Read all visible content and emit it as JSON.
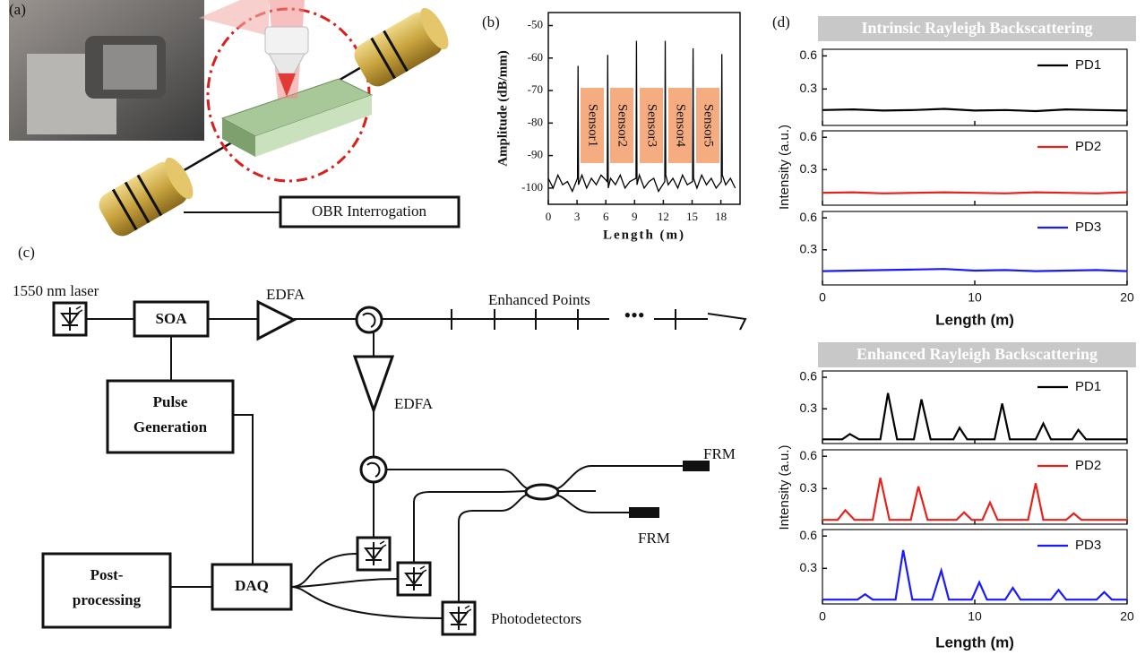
{
  "figure": {
    "panel_labels": [
      "(a)",
      "(b)",
      "(c)",
      "(d)"
    ]
  },
  "diagram_a": {
    "box": "OBR Interrogation"
  },
  "diagram_c": {
    "laser": "1550 nm laser",
    "soa": "SOA",
    "edfa_1": "EDFA",
    "enhanced_points": "Enhanced Points",
    "edfa_2": "EDFA",
    "pulse_generation": [
      "Pulse",
      "Generation"
    ],
    "frm_1": "FRM",
    "frm_2": "FRM",
    "post_processing": [
      "Post-",
      "processing"
    ],
    "daq": "DAQ",
    "photodetectors": "Photodetectors"
  },
  "chart_data": [
    {
      "type": "line",
      "xlabel": "Length (m)",
      "ylabel": "Amplitude (dB/mm)",
      "annotations": [
        "Sensor1",
        "Sensor2",
        "Sensor3",
        "Sensor4",
        "Sensor5"
      ],
      "annotation_color": "#f4ac80",
      "x": [
        0,
        0.5,
        1,
        1.5,
        2,
        2.5,
        3.05,
        3.1,
        3.15,
        3.5,
        4,
        4.5,
        5,
        5.5,
        6.15,
        6.2,
        6.25,
        6.5,
        7,
        7.5,
        8,
        8.5,
        9.15,
        9.2,
        9.25,
        9.5,
        10,
        10.5,
        11,
        11.5,
        12.15,
        12.2,
        12.25,
        12.5,
        13,
        13.5,
        14,
        14.5,
        15.05,
        15.1,
        15.15,
        15.5,
        16,
        16.5,
        17,
        17.5,
        18.05,
        18.1,
        18.15,
        18.5,
        19,
        19.5
      ],
      "values": [
        -97,
        -100,
        -96,
        -99,
        -98,
        -101,
        -97,
        -62.4,
        -99,
        -96,
        -100,
        -97,
        -99,
        -96,
        -98,
        -59,
        -100,
        -97,
        -99,
        -96,
        -100,
        -98,
        -97,
        -54.7,
        -99,
        -96,
        -100,
        -98,
        -97,
        -101,
        -98,
        -54.7,
        -96,
        -99,
        -97,
        -100,
        -96,
        -99,
        -98,
        -57,
        -97,
        -100,
        -96,
        -99,
        -97,
        -100,
        -98,
        -58.8,
        -96,
        -99,
        -97,
        -100
      ],
      "color": "#000000",
      "xlim": [
        0,
        20
      ],
      "xticks": [
        0,
        3,
        6,
        9,
        12,
        15,
        18
      ],
      "ylim": [
        -105,
        -46
      ],
      "yticks": [
        -100,
        -90,
        -80,
        -70,
        -60,
        -50
      ]
    },
    {
      "type": "line",
      "subplots": true,
      "title": "Intrinsic Rayleigh Backscattering",
      "xlabel": "Length (m)",
      "ylabel": "Intensity (a.u.)",
      "legend": "upper right",
      "xlim": [
        0,
        20
      ],
      "xticks": [
        0,
        10,
        20
      ],
      "ylim": [
        -0.03,
        0.66
      ],
      "yticks": [
        0.3,
        0.6
      ],
      "series": [
        {
          "name": "PD1",
          "color": "#000000",
          "x": [
            0,
            2,
            4,
            6,
            8,
            10,
            12,
            14,
            16,
            18,
            20
          ],
          "values": [
            0.11,
            0.115,
            0.105,
            0.11,
            0.12,
            0.105,
            0.11,
            0.1,
            0.115,
            0.11,
            0.105
          ]
        },
        {
          "name": "PD2",
          "color": "#e8211a",
          "x": [
            0,
            2,
            4,
            6,
            8,
            10,
            12,
            14,
            16,
            18,
            20
          ],
          "values": [
            0.085,
            0.09,
            0.08,
            0.085,
            0.09,
            0.085,
            0.08,
            0.09,
            0.085,
            0.08,
            0.09
          ]
        },
        {
          "name": "PD3",
          "color": "#1a1aff",
          "x": [
            0,
            2,
            4,
            6,
            8,
            10,
            12,
            14,
            16,
            18,
            20
          ],
          "values": [
            0.1,
            0.105,
            0.11,
            0.115,
            0.12,
            0.105,
            0.11,
            0.1,
            0.105,
            0.11,
            0.1
          ]
        }
      ]
    },
    {
      "type": "line",
      "subplots": true,
      "title": "Enhanced Rayleigh Backscattering",
      "xlabel": "Length (m)",
      "ylabel": "Intensity (a.u.)",
      "legend": "upper right",
      "xlim": [
        0,
        20
      ],
      "xticks": [
        0,
        10,
        20
      ],
      "ylim": [
        -0.03,
        0.66
      ],
      "yticks": [
        0.3,
        0.6
      ],
      "series": [
        {
          "name": "PD1",
          "color": "#000000",
          "x": [
            0,
            1.3,
            1.8,
            2.4,
            3.8,
            4.3,
            4.9,
            6.0,
            6.5,
            7.1,
            8.6,
            9.0,
            9.5,
            11.3,
            11.8,
            12.3,
            14.0,
            14.5,
            15.0,
            16.4,
            16.8,
            17.3,
            20
          ],
          "values": [
            0.01,
            0.01,
            0.06,
            0.01,
            0.01,
            0.45,
            0.01,
            0.01,
            0.39,
            0.01,
            0.01,
            0.12,
            0.01,
            0.01,
            0.35,
            0.01,
            0.01,
            0.16,
            0.01,
            0.01,
            0.1,
            0.01,
            0.01
          ]
        },
        {
          "name": "PD2",
          "color": "#e8211a",
          "x": [
            0,
            1.0,
            1.5,
            2.1,
            3.3,
            3.8,
            4.4,
            5.8,
            6.3,
            6.9,
            8.8,
            9.3,
            9.8,
            10.5,
            11.0,
            11.5,
            13.5,
            14.0,
            14.5,
            16.0,
            16.5,
            17.0,
            20
          ],
          "values": [
            0.01,
            0.01,
            0.1,
            0.01,
            0.01,
            0.4,
            0.01,
            0.01,
            0.32,
            0.01,
            0.01,
            0.08,
            0.01,
            0.01,
            0.17,
            0.01,
            0.01,
            0.35,
            0.01,
            0.01,
            0.07,
            0.01,
            0.01
          ]
        },
        {
          "name": "PD3",
          "color": "#1a1aff",
          "x": [
            0,
            2.3,
            2.8,
            3.3,
            4.8,
            5.3,
            5.9,
            7.2,
            7.8,
            8.3,
            9.8,
            10.3,
            10.8,
            12.0,
            12.5,
            13.0,
            15.0,
            15.5,
            16.0,
            18.0,
            18.5,
            19.0,
            20
          ],
          "values": [
            0.01,
            0.01,
            0.06,
            0.01,
            0.01,
            0.47,
            0.01,
            0.01,
            0.28,
            0.01,
            0.01,
            0.17,
            0.01,
            0.01,
            0.12,
            0.01,
            0.01,
            0.1,
            0.01,
            0.01,
            0.08,
            0.01,
            0.01
          ]
        }
      ]
    }
  ]
}
